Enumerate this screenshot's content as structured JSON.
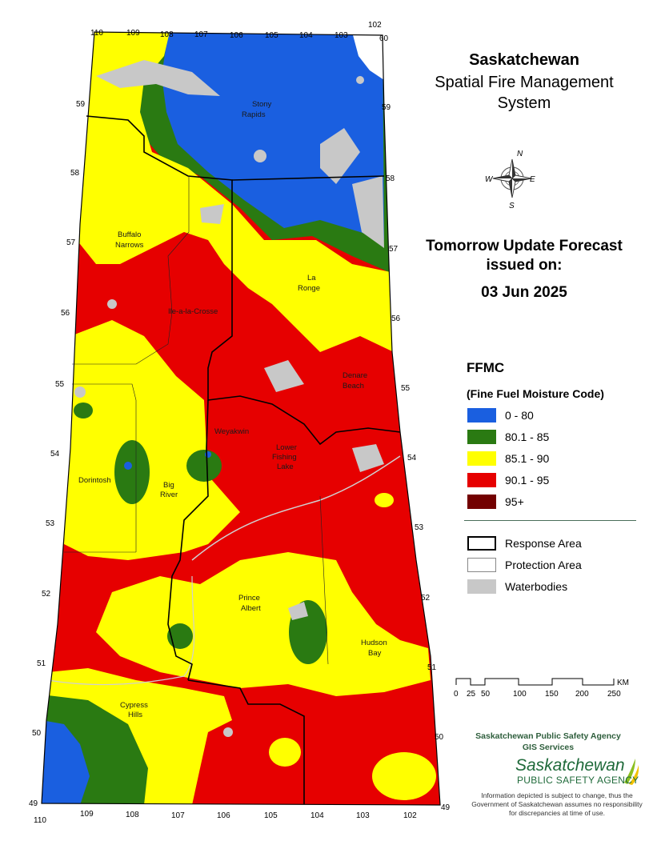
{
  "header": {
    "title_line1": "Saskatchewan",
    "title_line2": "Spatial Fire Management",
    "title_line3": "System"
  },
  "forecast": {
    "line1": "Tomorrow Update Forecast",
    "line2": "issued on:",
    "date": "03 Jun 2025"
  },
  "compass": {
    "n": "N",
    "s": "S",
    "e": "E",
    "w": "W"
  },
  "legend": {
    "title": "FFMC",
    "subtitle": "(Fine Fuel Moisture Code)",
    "classes": [
      {
        "label": "0 - 80",
        "color": "#1a5fe0"
      },
      {
        "label": "80.1 - 85",
        "color": "#2a7a12"
      },
      {
        "label": "85.1 - 90",
        "color": "#ffff00"
      },
      {
        "label": "90.1 - 95",
        "color": "#e60000"
      },
      {
        "label": "95+",
        "color": "#730000"
      }
    ],
    "features": [
      {
        "label": "Response Area"
      },
      {
        "label": "Protection Area"
      },
      {
        "label": "Waterbodies"
      }
    ]
  },
  "scalebar": {
    "ticks": [
      "0",
      "25",
      "50",
      "100",
      "150",
      "200",
      "250"
    ],
    "unit": "KM"
  },
  "longitudes_top": [
    "110",
    "109",
    "108",
    "107",
    "106",
    "105",
    "104",
    "103",
    "102"
  ],
  "longitudes_bottom": [
    "110",
    "109",
    "108",
    "107",
    "106",
    "105",
    "104",
    "103",
    "102"
  ],
  "latitudes": [
    "60",
    "59",
    "58",
    "57",
    "56",
    "55",
    "54",
    "53",
    "52",
    "51",
    "50",
    "49"
  ],
  "places": {
    "stony_rapids": [
      "Stony",
      "Rapids"
    ],
    "buffalo_narrows": [
      "Buffalo",
      "Narrows"
    ],
    "la_ronge": [
      "La",
      "Ronge"
    ],
    "ile_a_la_crosse": [
      "Ile-a-la-Crosse"
    ],
    "denare_beach": [
      "Denare",
      "Beach"
    ],
    "weyakwin": [
      "Weyakwin"
    ],
    "lower_fishing_lake": [
      "Lower",
      "Fishing",
      "Lake"
    ],
    "dorintosh": [
      "Dorintosh"
    ],
    "big_river": [
      "Big",
      "River"
    ],
    "prince_albert": [
      "Prince",
      "Albert"
    ],
    "hudson_bay": [
      "Hudson",
      "Bay"
    ],
    "cypress_hills": [
      "Cypress",
      "Hills"
    ]
  },
  "footer": {
    "agency_line1": "Saskatchewan Public Safety Agency",
    "agency_line2": "GIS  Services",
    "logo_line1": "Saskatchewan",
    "logo_line2": "PUBLIC SAFETY AGENCY",
    "disclaimer": "Information depicted is subject to change, thus the Government of Saskatchewan assumes no responsibility for discrepancies at time of use."
  }
}
